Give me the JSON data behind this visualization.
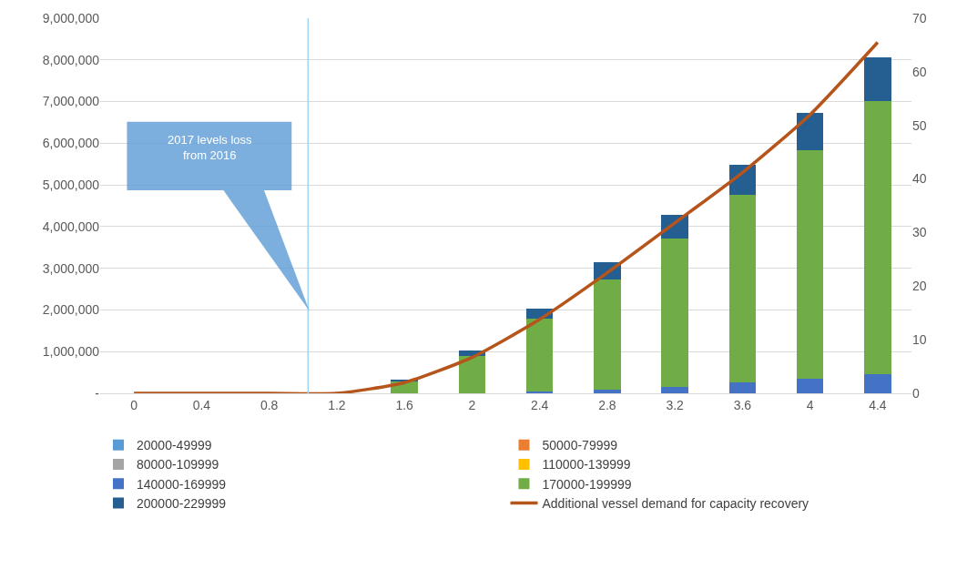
{
  "chart_data": {
    "type": "bar",
    "stacked": true,
    "x": [
      0,
      0.4,
      0.8,
      1.2,
      1.6,
      2,
      2.4,
      2.8,
      3.2,
      3.6,
      4,
      4.4
    ],
    "xlim": [
      -0.2,
      4.6
    ],
    "xticks": [
      0,
      0.4,
      0.8,
      1.2,
      1.6,
      2,
      2.4,
      2.8,
      3.2,
      3.6,
      4,
      4.4
    ],
    "ylim": [
      0,
      9000000
    ],
    "yticks": [
      {
        "value": 0,
        "label": "-"
      },
      {
        "value": 1000000,
        "label": "1,000,000"
      },
      {
        "value": 2000000,
        "label": "2,000,000"
      },
      {
        "value": 3000000,
        "label": "3,000,000"
      },
      {
        "value": 4000000,
        "label": "4,000,000"
      },
      {
        "value": 5000000,
        "label": "5,000,000"
      },
      {
        "value": 6000000,
        "label": "6,000,000"
      },
      {
        "value": 7000000,
        "label": "7,000,000"
      },
      {
        "value": 8000000,
        "label": "8,000,000"
      },
      {
        "value": 9000000,
        "label": "9,000,000"
      }
    ],
    "y2lim": [
      0,
      70
    ],
    "y2ticks": [
      0,
      10,
      20,
      30,
      40,
      50,
      60,
      70
    ],
    "grid": "y",
    "legend": "bottom",
    "series": [
      {
        "name": "20000-49999",
        "color": "#5b9bd5",
        "values": [
          0,
          0,
          0,
          0,
          0,
          0,
          0,
          0,
          0,
          0,
          0,
          0
        ]
      },
      {
        "name": "50000-79999",
        "color": "#ed7d31",
        "values": [
          0,
          0,
          0,
          0,
          0,
          0,
          0,
          0,
          0,
          0,
          0,
          0
        ]
      },
      {
        "name": "80000-109999",
        "color": "#a5a5a5",
        "values": [
          0,
          0,
          0,
          0,
          0,
          0,
          0,
          0,
          0,
          0,
          0,
          0
        ]
      },
      {
        "name": "110000-139999",
        "color": "#ffc000",
        "values": [
          0,
          0,
          0,
          0,
          0,
          0,
          0,
          0,
          0,
          0,
          0,
          0
        ]
      },
      {
        "name": "140000-169999",
        "color": "#4472c4",
        "values": [
          0,
          0,
          0,
          0,
          0,
          10000,
          40000,
          80000,
          150000,
          260000,
          350000,
          450000
        ]
      },
      {
        "name": "170000-199999",
        "color": "#70ad47",
        "values": [
          0,
          0,
          0,
          0,
          300000,
          880000,
          1760000,
          2650000,
          3570000,
          4500000,
          5490000,
          6560000
        ]
      },
      {
        "name": "200000-229999",
        "color": "#255e91",
        "values": [
          0,
          0,
          0,
          0,
          20000,
          130000,
          230000,
          410000,
          570000,
          720000,
          890000,
          1040000
        ]
      },
      {
        "name": "Additional vessel demand for capacity recovery",
        "type": "line",
        "axis": "y2",
        "color": "#b5541b",
        "values": [
          0,
          0,
          0,
          0,
          2,
          6.7,
          13.8,
          22.5,
          31.8,
          41.2,
          52,
          65.5
        ]
      }
    ],
    "ref_lines": [
      {
        "axis": "x",
        "value": 1.03,
        "color": "#9dd3f5"
      }
    ],
    "annotations": [
      "2017 levels loss\nfrom 2016"
    ]
  }
}
